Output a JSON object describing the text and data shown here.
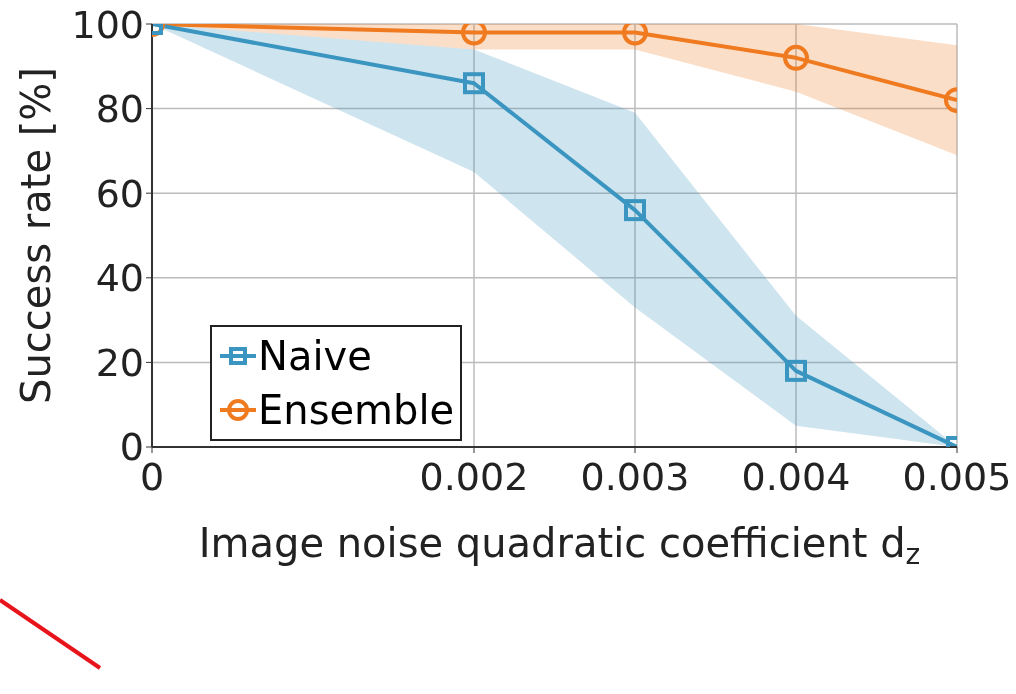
{
  "chart_data": {
    "type": "line",
    "xlabel": "Image noise quadratic coefficient d$_{z}$",
    "ylabel": "Success rate [%]",
    "x": [
      0,
      0.002,
      0.003,
      0.004,
      0.005
    ],
    "series": [
      {
        "name": "Naive",
        "color": "#3a95c0",
        "marker": "square",
        "values": [
          100,
          86,
          56,
          18,
          0
        ],
        "lower": [
          100,
          65,
          33,
          5,
          0
        ],
        "upper": [
          100,
          94,
          79,
          31,
          0
        ]
      },
      {
        "name": "Ensemble",
        "color": "#ef7a1f",
        "marker": "circle",
        "values": [
          100,
          98,
          98,
          92,
          82
        ],
        "lower": [
          100,
          94,
          94,
          84,
          69
        ],
        "upper": [
          100,
          100,
          100,
          100,
          95
        ]
      }
    ],
    "xlim": [
      0,
      0.005
    ],
    "xticks": [
      0,
      0.002,
      0.003,
      0.004,
      0.005
    ],
    "ylim": [
      0,
      100
    ],
    "yticks": [
      0,
      20,
      40,
      60,
      80,
      100
    ],
    "grid": true,
    "legend": "bottom left",
    "line_style": "solid"
  }
}
